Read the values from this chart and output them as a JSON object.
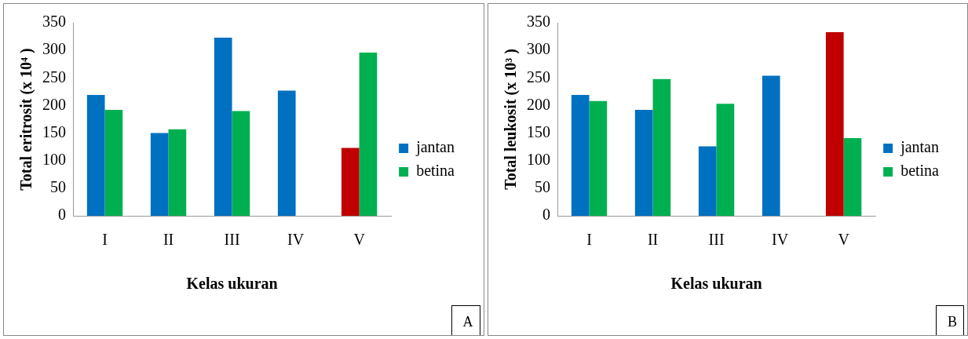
{
  "chart_data": [
    {
      "type": "bar",
      "xlabel": "Kelas ukuran",
      "ylabel": "Total eritrosit (x 10⁴ )",
      "categories": [
        "I",
        "II",
        "III",
        "IV",
        "V"
      ],
      "series": [
        {
          "name": "jantan",
          "color": "#0070c0",
          "colors": [
            "#0070c0",
            "#0070c0",
            "#0070c0",
            "#0070c0",
            "#c00000"
          ],
          "values": [
            219,
            150,
            323,
            227,
            123
          ]
        },
        {
          "name": "betina",
          "color": "#00b050",
          "values": [
            192,
            157,
            190,
            null,
            296
          ]
        }
      ],
      "ylim": [
        0,
        350
      ],
      "yticks": [
        0,
        50,
        100,
        150,
        200,
        250,
        300,
        350
      ],
      "grid": false,
      "legend": "right",
      "annotations": [
        "A"
      ]
    },
    {
      "type": "bar",
      "xlabel": "Kelas ukuran",
      "ylabel": "Total leukosit (x 10³ )",
      "categories": [
        "I",
        "II",
        "III",
        "IV",
        "V"
      ],
      "series": [
        {
          "name": "jantan",
          "color": "#0070c0",
          "colors": [
            "#0070c0",
            "#0070c0",
            "#0070c0",
            "#0070c0",
            "#c00000"
          ],
          "values": [
            219,
            192,
            126,
            254,
            333
          ]
        },
        {
          "name": "betina",
          "color": "#00b050",
          "values": [
            208,
            248,
            203,
            null,
            141
          ]
        }
      ],
      "ylim": [
        0,
        350
      ],
      "yticks": [
        0,
        50,
        100,
        150,
        200,
        250,
        300,
        350
      ],
      "grid": false,
      "legend": "right",
      "annotations": [
        "B"
      ]
    }
  ]
}
